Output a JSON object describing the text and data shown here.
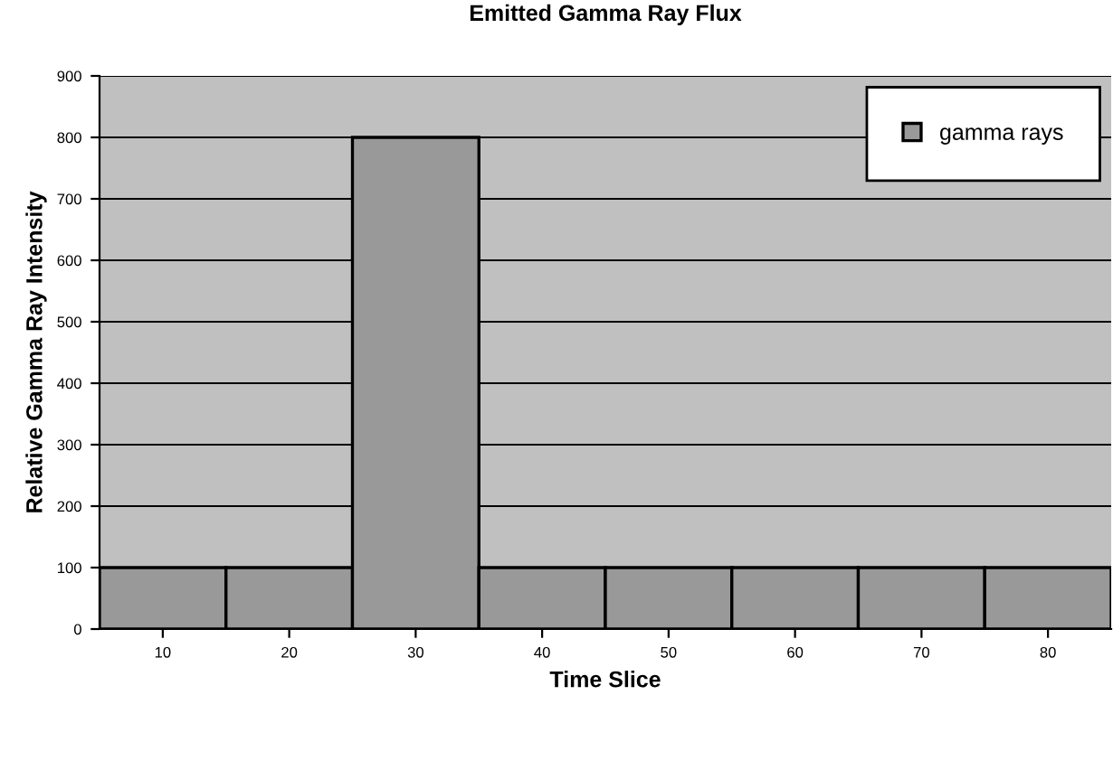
{
  "chart_data": {
    "type": "bar",
    "title": "Emitted Gamma Ray Flux",
    "xlabel": "Time Slice",
    "ylabel": "Relative Gamma Ray Intensity",
    "categories": [
      "10",
      "20",
      "30",
      "40",
      "50",
      "60",
      "70",
      "80"
    ],
    "series": [
      {
        "name": "gamma rays",
        "color": "#999999",
        "values": [
          100,
          100,
          800,
          100,
          100,
          100,
          100,
          100
        ]
      }
    ],
    "ylim": [
      0,
      900
    ],
    "yticks": [
      0,
      100,
      200,
      300,
      400,
      500,
      600,
      700,
      800,
      900
    ],
    "grid": "y",
    "legend": "top right"
  }
}
